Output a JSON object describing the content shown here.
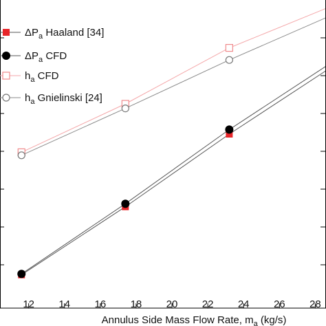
{
  "chart_data": {
    "type": "line",
    "xlabel": "Annulus Side Mass Flow Rate, m",
    "xlabel_sub": "a",
    "xlabel_unit": " (kg/s)",
    "xlim": [
      10.4,
      28.6
    ],
    "ylim": [
      0,
      1
    ],
    "x_ticks": [
      12,
      14,
      16,
      18,
      20,
      22,
      24,
      26,
      28
    ],
    "x_tick_labels": [
      "12",
      "14",
      "16",
      "18",
      "20",
      "22",
      "24",
      "26",
      "28"
    ],
    "grid": false,
    "legend_position": "top-left",
    "series": [
      {
        "name": "ΔP",
        "name_sub": "a",
        "name_suffix": " Haaland [34]",
        "marker": "square-filled",
        "color": "#e8262a",
        "line_color": "#555555",
        "x": [
          11.6,
          17.4,
          23.2,
          29.0
        ],
        "y": [
          0.11,
          0.335,
          0.575,
          0.8
        ]
      },
      {
        "name": "ΔP",
        "name_sub": "a",
        "name_suffix": " CFD",
        "marker": "circle-filled",
        "color": "#000000",
        "line_color": "#555555",
        "x": [
          11.6,
          17.4,
          23.2,
          29.0
        ],
        "y": [
          0.113,
          0.345,
          0.59,
          0.815
        ]
      },
      {
        "name": "h",
        "name_sub": "a",
        "name_suffix": " CFD",
        "marker": "square-open",
        "color": "#f08a8c",
        "line_color": "#f4a6a8",
        "x": [
          11.6,
          17.4,
          23.2,
          29.0
        ],
        "y": [
          0.515,
          0.675,
          0.86,
          1.0
        ]
      },
      {
        "name": "h",
        "name_sub": "a",
        "name_suffix": " Gnielinski [24]",
        "marker": "circle-open",
        "color": "#777777",
        "line_color": "#888888",
        "x": [
          11.6,
          17.4,
          23.2,
          29.0
        ],
        "y": [
          0.505,
          0.66,
          0.82,
          0.97
        ]
      }
    ]
  }
}
